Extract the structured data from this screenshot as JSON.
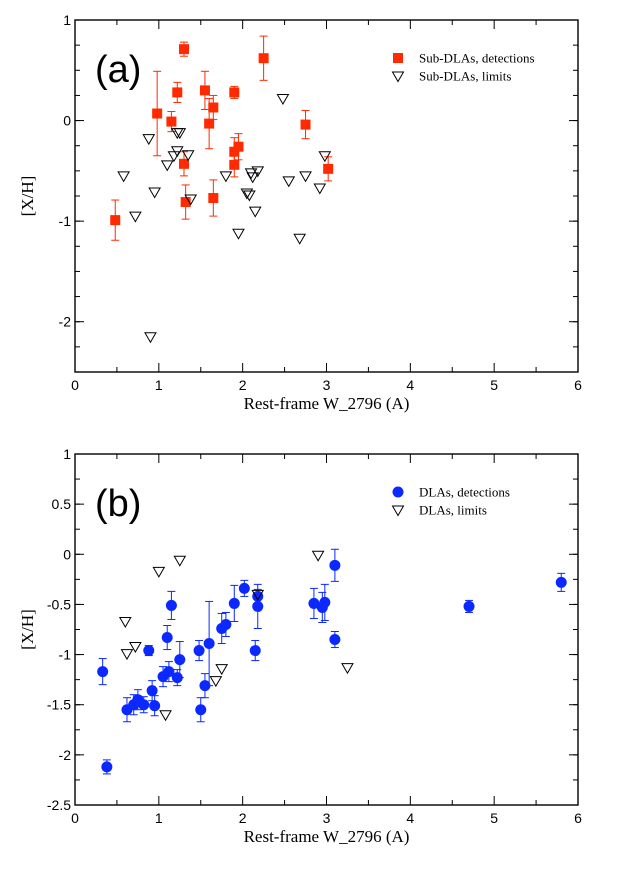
{
  "chart_data": [
    {
      "type": "scatter",
      "panel_label": "(a)",
      "xlabel": "Rest-frame W_2796 (A)",
      "ylabel": "[X/H]",
      "xlim": [
        0,
        6
      ],
      "ylim": [
        -2.5,
        1
      ],
      "xticks": [
        0,
        1,
        2,
        3,
        4,
        5,
        6
      ],
      "xtick_labels": [
        "0",
        "1",
        "2",
        "3",
        "4",
        "5",
        "6"
      ],
      "yticks": [
        1,
        0,
        -1,
        -2
      ],
      "ytick_labels": [
        "1",
        "0",
        "-1",
        "-2"
      ],
      "legend_position": "top-right",
      "series": [
        {
          "name": "Sub-DLAs, detections",
          "marker": "square",
          "color": "#ff2a00",
          "points": [
            {
              "x": 0.48,
              "y": -0.99,
              "err": 0.2
            },
            {
              "x": 0.98,
              "y": 0.07,
              "err": 0.42
            },
            {
              "x": 1.15,
              "y": -0.01,
              "err": 0.1
            },
            {
              "x": 1.22,
              "y": 0.28,
              "err": 0.1
            },
            {
              "x": 1.3,
              "y": 0.71,
              "err": 0.07
            },
            {
              "x": 1.3,
              "y": -0.43,
              "err": 0.12
            },
            {
              "x": 1.32,
              "y": -0.81,
              "err": 0.17
            },
            {
              "x": 1.55,
              "y": 0.3,
              "err": 0.19
            },
            {
              "x": 1.6,
              "y": -0.03,
              "err": 0.25
            },
            {
              "x": 1.65,
              "y": 0.13,
              "err": 0.12
            },
            {
              "x": 1.65,
              "y": -0.77,
              "err": 0.18
            },
            {
              "x": 1.9,
              "y": 0.28,
              "err": 0.06
            },
            {
              "x": 1.9,
              "y": -0.31,
              "err": 0.14
            },
            {
              "x": 1.9,
              "y": -0.44,
              "err": 0.12
            },
            {
              "x": 1.95,
              "y": -0.26,
              "err": 0.13
            },
            {
              "x": 2.25,
              "y": 0.62,
              "err": 0.22
            },
            {
              "x": 2.75,
              "y": -0.04,
              "err": 0.14
            },
            {
              "x": 3.02,
              "y": -0.48,
              "err": 0.12
            }
          ]
        },
        {
          "name": "Sub-DLAs, limits",
          "marker": "triangle-down",
          "color": "#000000",
          "points": [
            {
              "x": 0.58,
              "y": -0.55
            },
            {
              "x": 0.72,
              "y": -0.95
            },
            {
              "x": 0.88,
              "y": -0.18
            },
            {
              "x": 0.9,
              "y": -2.15
            },
            {
              "x": 0.95,
              "y": -0.71
            },
            {
              "x": 1.1,
              "y": -0.44
            },
            {
              "x": 1.18,
              "y": -0.35
            },
            {
              "x": 1.22,
              "y": -0.3
            },
            {
              "x": 1.22,
              "y": -0.12
            },
            {
              "x": 1.25,
              "y": -0.12
            },
            {
              "x": 1.35,
              "y": -0.34
            },
            {
              "x": 1.38,
              "y": -0.78
            },
            {
              "x": 1.8,
              "y": -0.55
            },
            {
              "x": 1.95,
              "y": -1.12
            },
            {
              "x": 2.05,
              "y": -0.72
            },
            {
              "x": 2.08,
              "y": -0.74
            },
            {
              "x": 2.1,
              "y": -0.52
            },
            {
              "x": 2.12,
              "y": -0.56
            },
            {
              "x": 2.15,
              "y": -0.9
            },
            {
              "x": 2.18,
              "y": -0.5
            },
            {
              "x": 2.48,
              "y": 0.22
            },
            {
              "x": 2.55,
              "y": -0.6
            },
            {
              "x": 2.68,
              "y": -1.17
            },
            {
              "x": 2.75,
              "y": -0.55
            },
            {
              "x": 2.92,
              "y": -0.67
            },
            {
              "x": 2.98,
              "y": -0.35
            }
          ]
        }
      ]
    },
    {
      "type": "scatter",
      "panel_label": "(b)",
      "xlabel": "Rest-frame W_2796 (A)",
      "ylabel": "[X/H]",
      "xlim": [
        0,
        6
      ],
      "ylim": [
        -2.5,
        1
      ],
      "xticks": [
        0,
        1,
        2,
        3,
        4,
        5,
        6
      ],
      "xtick_labels": [
        "0",
        "1",
        "2",
        "3",
        "4",
        "5",
        "6"
      ],
      "yticks": [
        1,
        0.5,
        0,
        -0.5,
        -1,
        -1.5,
        -2,
        -2.5
      ],
      "ytick_labels": [
        "1",
        "0.5",
        "0",
        "-0.5",
        "-1",
        "-1.5",
        "-2",
        "-2.5"
      ],
      "legend_position": "top-right",
      "series": [
        {
          "name": "DLAs, detections",
          "marker": "circle",
          "color": "#0a28ff",
          "points": [
            {
              "x": 0.33,
              "y": -1.17,
              "err": 0.13
            },
            {
              "x": 0.38,
              "y": -2.12,
              "err": 0.07
            },
            {
              "x": 0.62,
              "y": -1.55,
              "err": 0.12
            },
            {
              "x": 0.7,
              "y": -1.5,
              "err": 0.1
            },
            {
              "x": 0.75,
              "y": -1.45,
              "err": 0.1
            },
            {
              "x": 0.82,
              "y": -1.5,
              "err": 0.08
            },
            {
              "x": 0.88,
              "y": -0.96,
              "err": 0.05
            },
            {
              "x": 0.92,
              "y": -1.36,
              "err": 0.1
            },
            {
              "x": 0.95,
              "y": -1.51,
              "err": 0.1
            },
            {
              "x": 1.05,
              "y": -1.22,
              "err": 0.1
            },
            {
              "x": 1.1,
              "y": -0.83,
              "err": 0.12
            },
            {
              "x": 1.12,
              "y": -1.17,
              "err": 0.1
            },
            {
              "x": 1.15,
              "y": -0.51,
              "err": 0.14
            },
            {
              "x": 1.22,
              "y": -1.23,
              "err": 0.08
            },
            {
              "x": 1.25,
              "y": -1.05,
              "err": 0.18
            },
            {
              "x": 1.48,
              "y": -0.96,
              "err": 0.1
            },
            {
              "x": 1.5,
              "y": -1.55,
              "err": 0.12
            },
            {
              "x": 1.55,
              "y": -1.31,
              "err": 0.12
            },
            {
              "x": 1.6,
              "y": -0.89,
              "err": 0.42
            },
            {
              "x": 1.75,
              "y": -0.74,
              "err": 0.15
            },
            {
              "x": 1.8,
              "y": -0.7,
              "err": 0.12
            },
            {
              "x": 1.9,
              "y": -0.49,
              "err": 0.18
            },
            {
              "x": 2.02,
              "y": -0.34,
              "err": 0.08
            },
            {
              "x": 2.15,
              "y": -0.96,
              "err": 0.1
            },
            {
              "x": 2.18,
              "y": -0.52,
              "err": 0.22
            },
            {
              "x": 2.18,
              "y": -0.42,
              "err": 0.07
            },
            {
              "x": 2.85,
              "y": -0.49,
              "err": 0.15
            },
            {
              "x": 2.95,
              "y": -0.53,
              "err": 0.15
            },
            {
              "x": 2.98,
              "y": -0.48,
              "err": 0.18
            },
            {
              "x": 3.1,
              "y": -0.11,
              "err": 0.16
            },
            {
              "x": 3.1,
              "y": -0.85,
              "err": 0.08
            },
            {
              "x": 4.7,
              "y": -0.52,
              "err": 0.06
            },
            {
              "x": 5.8,
              "y": -0.28,
              "err": 0.09
            }
          ]
        },
        {
          "name": "DLAs, limits",
          "marker": "triangle-down",
          "color": "#000000",
          "points": [
            {
              "x": 0.6,
              "y": -0.67
            },
            {
              "x": 0.62,
              "y": -0.99
            },
            {
              "x": 0.72,
              "y": -0.92
            },
            {
              "x": 1.0,
              "y": -0.17
            },
            {
              "x": 1.08,
              "y": -1.6
            },
            {
              "x": 1.25,
              "y": -0.06
            },
            {
              "x": 1.68,
              "y": -1.26
            },
            {
              "x": 1.75,
              "y": -1.14
            },
            {
              "x": 2.18,
              "y": -0.4
            },
            {
              "x": 2.9,
              "y": -0.01
            },
            {
              "x": 3.25,
              "y": -1.13
            }
          ]
        }
      ]
    }
  ]
}
